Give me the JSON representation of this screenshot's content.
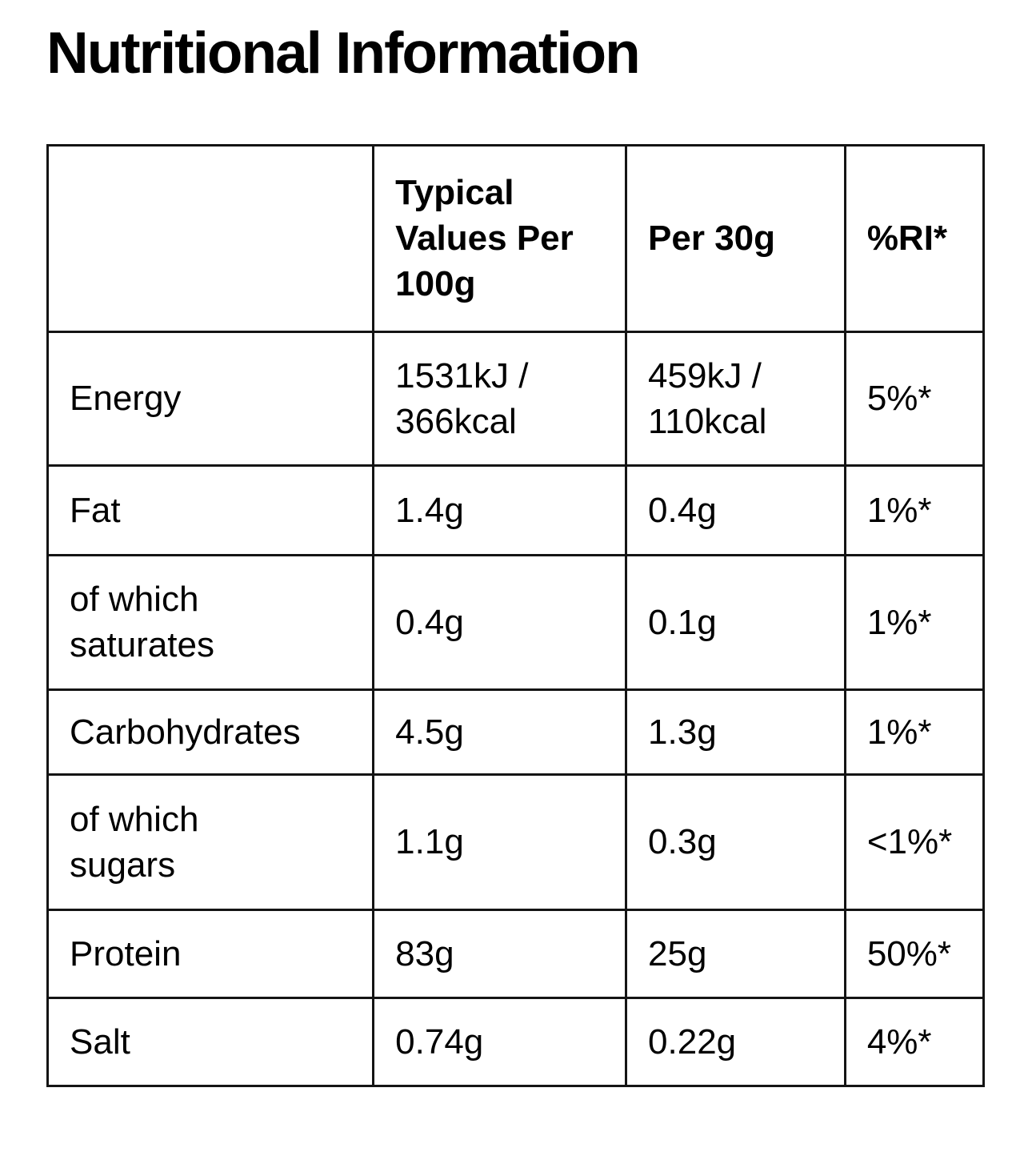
{
  "page": {
    "title": "Nutritional Information"
  },
  "theme": {
    "background": "#ffffff",
    "text_color": "#000000",
    "border_color": "#141414"
  },
  "table": {
    "columns": [
      {
        "label": ""
      },
      {
        "label": "Typical Values Per 100g"
      },
      {
        "label": "Per 30g"
      },
      {
        "label": "%RI*"
      }
    ],
    "rows": [
      {
        "label": "Energy",
        "per_100g": "1531kJ / 366kcal",
        "per_30g": "459kJ / 110kcal",
        "ri": "5%*"
      },
      {
        "label": "Fat",
        "per_100g": "1.4g",
        "per_30g": "0.4g",
        "ri": "1%*"
      },
      {
        "label": "of which saturates",
        "per_100g": "0.4g",
        "per_30g": "0.1g",
        "ri": "1%*"
      },
      {
        "label": "Carbohydrates",
        "per_100g": "4.5g",
        "per_30g": "1.3g",
        "ri": "1%*"
      },
      {
        "label": "of which sugars",
        "per_100g": "1.1g",
        "per_30g": "0.3g",
        "ri": "<1%*"
      },
      {
        "label": "Protein",
        "per_100g": "83g",
        "per_30g": "25g",
        "ri": "50%*"
      },
      {
        "label": "Salt",
        "per_100g": "0.74g",
        "per_30g": "0.22g",
        "ri": "4%*"
      }
    ]
  }
}
